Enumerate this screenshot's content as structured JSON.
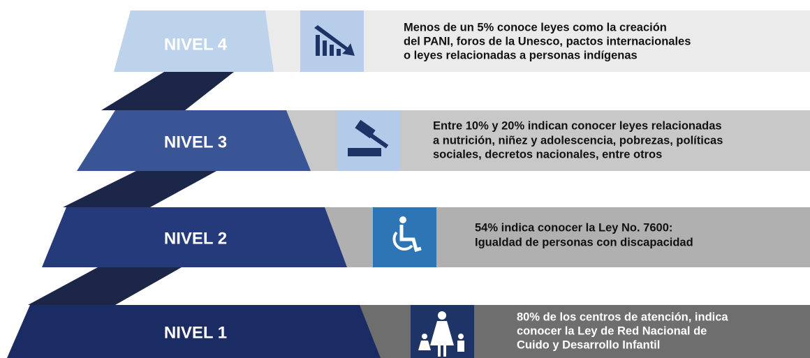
{
  "levels": [
    {
      "label": "NIVEL 4",
      "lines": [
        "Menos de un 5% conoce leyes como la creación",
        "del PANI, foros de la Unesco, pactos internacionales",
        "o leyes relacionadas a personas indígenas"
      ]
    },
    {
      "label": "NIVEL 3",
      "lines": [
        "Entre 10% y 20% indican conocer leyes relacionadas",
        "a nutrición, niñez y adolescencia, pobrezas, políticas",
        "sociales, decretos nacionales, entre otros"
      ]
    },
    {
      "label": "NIVEL 2",
      "lines": [
        "54% indica conocer la Ley No. 7600:",
        "Igualdad de personas con discapacidad"
      ]
    },
    {
      "label": "NIVEL 1",
      "lines": [
        "80% de los centros de atención, indica",
        "conocer la Ley de Red Nacional de",
        "Cuido y Desarrollo Infantil"
      ]
    }
  ]
}
